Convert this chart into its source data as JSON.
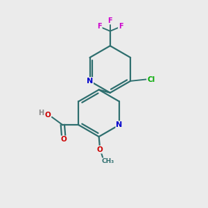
{
  "background_color": "#ebebeb",
  "bond_color": "#2d6e6e",
  "bond_width": 1.6,
  "atom_colors": {
    "N": "#0000cc",
    "O": "#cc0000",
    "F": "#cc00cc",
    "Cl": "#00aa00",
    "C": "#2d6e6e",
    "H": "#888888"
  },
  "figsize": [
    3.0,
    3.0
  ],
  "dpi": 100
}
